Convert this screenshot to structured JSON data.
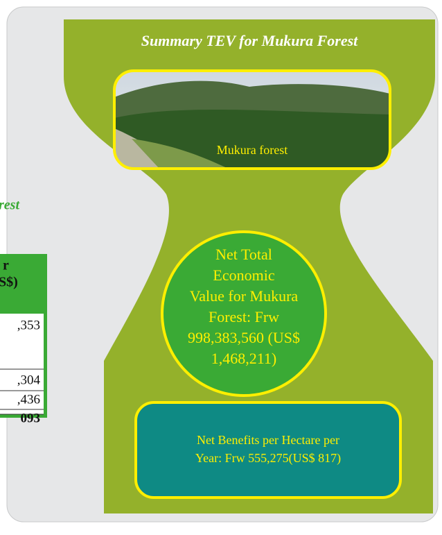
{
  "header": {
    "title": "Summary TEV for Mukura Forest"
  },
  "photo": {
    "caption": "Mukura forest"
  },
  "circle": {
    "lines": [
      "Net Total",
      "Economic",
      "Value for Mukura",
      "Forest: Frw",
      "998,383,560 (US$",
      "1,468,211)"
    ]
  },
  "box": {
    "lines": [
      "Net Benefits per Hectare per",
      "Year: Frw 555,275(US$ 817)"
    ]
  },
  "left_fragment": {
    "heading": "rest",
    "table": {
      "header": [
        "r",
        "S$)"
      ],
      "rows": [
        ",353",
        ",304",
        ",436",
        "093"
      ]
    }
  }
}
